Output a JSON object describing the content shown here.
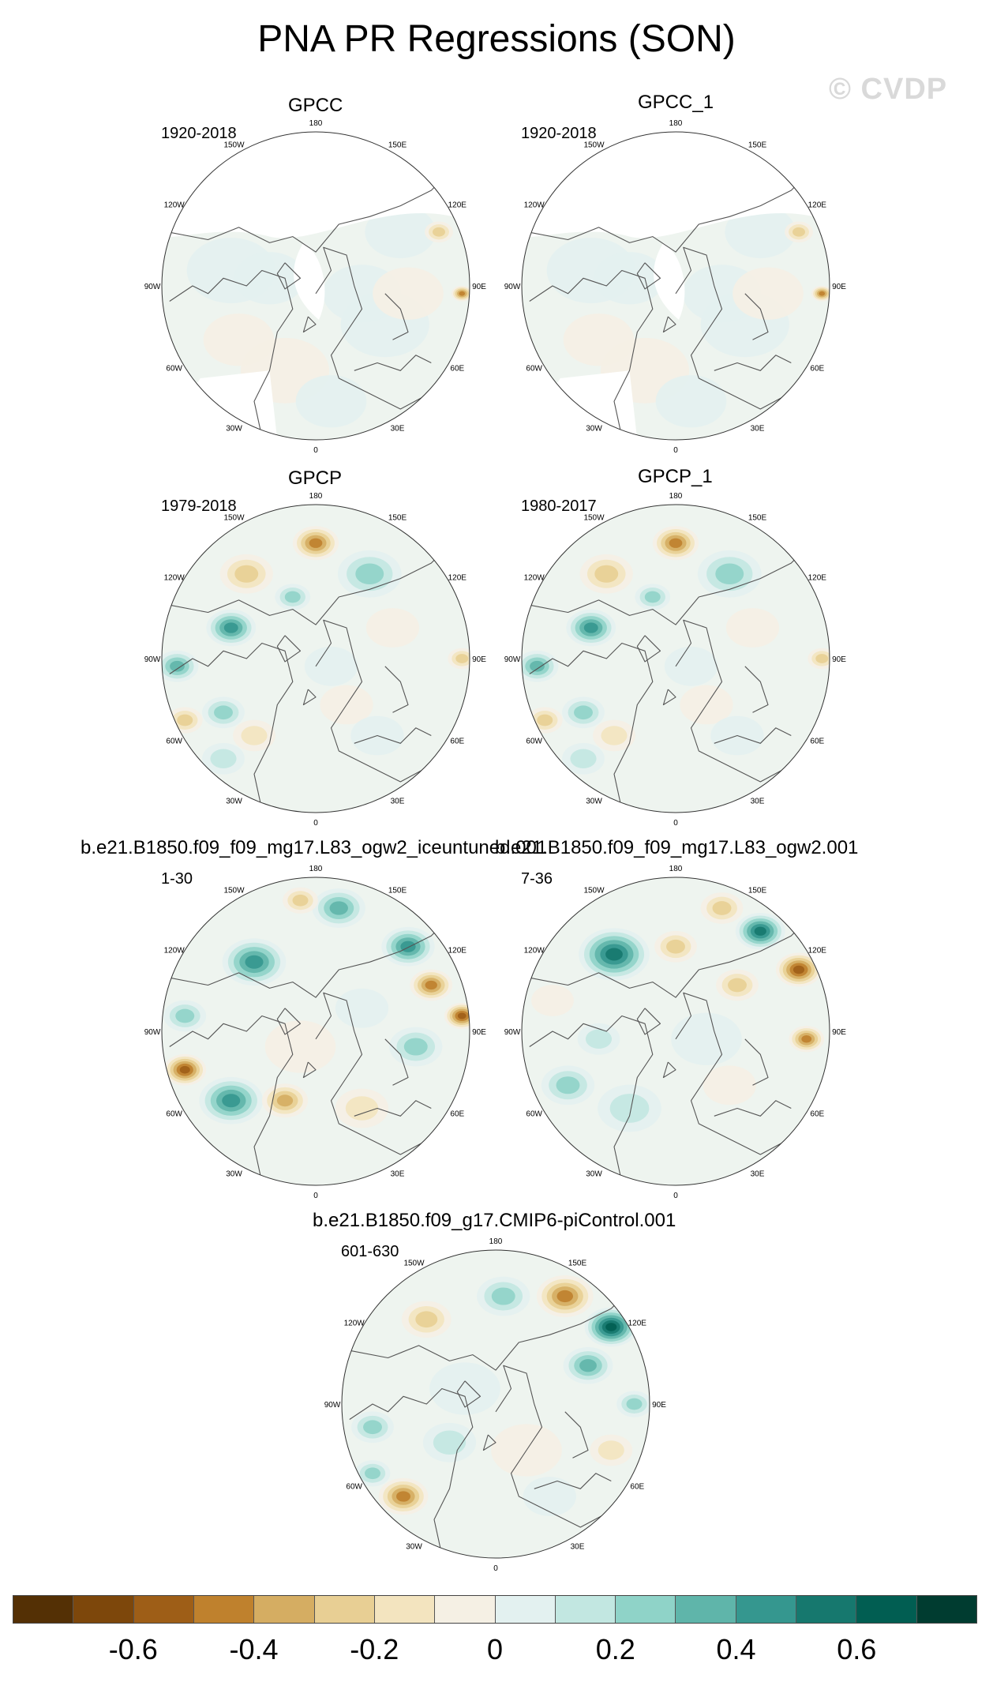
{
  "figure": {
    "title": "PNA PR Regressions (SON)",
    "watermark": "© CVDP"
  },
  "panels": [
    {
      "title": "GPCC",
      "years": "1920-2018",
      "pattern": "gpcc"
    },
    {
      "title": "GPCC_1",
      "years": "1920-2018",
      "pattern": "gpcc"
    },
    {
      "title": "GPCP",
      "years": "1979-2018",
      "pattern": "gpcp"
    },
    {
      "title": "GPCP_1",
      "years": "1980-2017",
      "pattern": "gpcp"
    },
    {
      "title": "b.e21.B1850.f09_f09_mg17.L83_ogw2_iceuntuned.001",
      "years": "1-30",
      "pattern": "model_a"
    },
    {
      "title": "b.e21.B1850.f09_f09_mg17.L83_ogw2.001",
      "years": "7-36",
      "pattern": "model_b"
    },
    {
      "title": "b.e21.B1850.f09_g17.CMIP6-piControl.001",
      "years": "601-630",
      "pattern": "model_c"
    }
  ],
  "longitude_labels": [
    "180",
    "150E",
    "120E",
    "90E",
    "60E",
    "30E",
    "0",
    "30W",
    "60W",
    "90W",
    "120W",
    "150W"
  ],
  "colorbar": {
    "colors": [
      "#543005",
      "#7d470b",
      "#9e5e17",
      "#bf812d",
      "#d5ad62",
      "#e8cf94",
      "#f3e4bf",
      "#f5f0e4",
      "#e3f1f0",
      "#c2e7e1",
      "#8fd3c8",
      "#5fb5aa",
      "#35978f",
      "#16786e",
      "#015e52",
      "#003c30"
    ],
    "tick_labels": [
      "-0.6",
      "-0.4",
      "-0.2",
      "0",
      "0.2",
      "0.4",
      "0.6"
    ],
    "tick_values": [
      -0.6,
      -0.4,
      -0.2,
      0,
      0.2,
      0.4,
      0.6
    ],
    "range": [
      -0.8,
      0.8
    ]
  }
}
